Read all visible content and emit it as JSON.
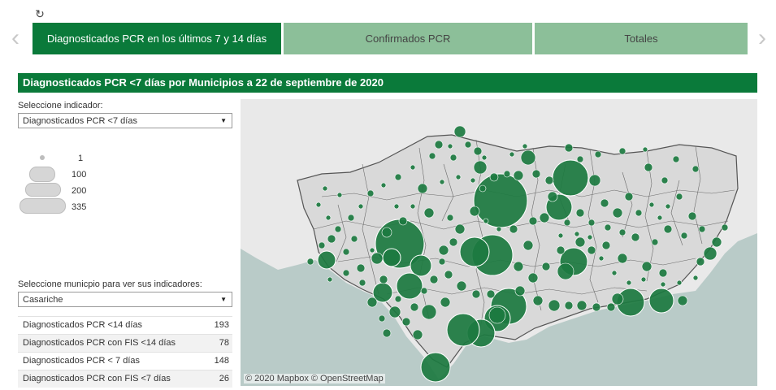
{
  "nav": {
    "reload_icon": "↻",
    "prev_icon": "‹",
    "next_icon": "›",
    "tabs": [
      {
        "label": "Diagnosticados PCR en los últimos 7 y 14 días"
      },
      {
        "label": "Confirmados PCR"
      },
      {
        "label": "Totales"
      }
    ]
  },
  "title": "Diagnosticados PCR <7 días por Municipios a 22 de septiembre de 2020",
  "indicator": {
    "label": "Seleccione indicador:",
    "value": "Diagnosticados PCR <7 días"
  },
  "legend": {
    "items": [
      {
        "value": "1"
      },
      {
        "value": "100"
      },
      {
        "value": "200"
      },
      {
        "value": "335"
      }
    ]
  },
  "municipio": {
    "label": "Seleccione municpio para ver sus indicadores:",
    "value": "Casariche"
  },
  "indicators": [
    {
      "name": "Diagnosticados PCR <14 días",
      "value": "193"
    },
    {
      "name": "Diagnosticados PCR con FIS <14 días",
      "value": "78"
    },
    {
      "name": "Diagnosticados PCR < 7 días",
      "value": "148"
    },
    {
      "name": "Diagnosticados PCR con FIS <7 días",
      "value": "26"
    }
  ],
  "map": {
    "attribution": "© 2020 Mapbox © OpenStreetMap",
    "colors": {
      "bubble": "#1c7a40",
      "sea": "#b9cbc8",
      "land": "#e9e9e9",
      "border": "#555555"
    }
  }
}
